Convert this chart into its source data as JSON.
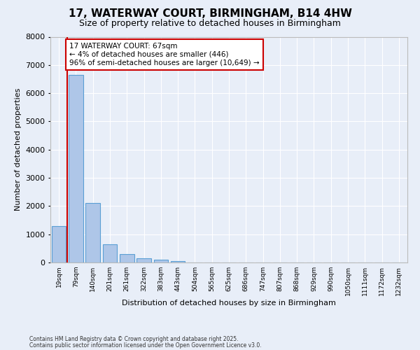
{
  "title_line1": "17, WATERWAY COURT, BIRMINGHAM, B14 4HW",
  "title_line2": "Size of property relative to detached houses in Birmingham",
  "xlabel": "Distribution of detached houses by size in Birmingham",
  "ylabel": "Number of detached properties",
  "categories": [
    "19sqm",
    "79sqm",
    "140sqm",
    "201sqm",
    "261sqm",
    "322sqm",
    "383sqm",
    "443sqm",
    "504sqm",
    "565sqm",
    "625sqm",
    "686sqm",
    "747sqm",
    "807sqm",
    "868sqm",
    "929sqm",
    "990sqm",
    "1050sqm",
    "1111sqm",
    "1172sqm",
    "1232sqm"
  ],
  "values": [
    1300,
    6650,
    2100,
    650,
    290,
    140,
    100,
    60,
    0,
    0,
    0,
    0,
    0,
    0,
    0,
    0,
    0,
    0,
    0,
    0,
    0
  ],
  "bar_color": "#aec6e8",
  "bar_edge_color": "#5a9fd4",
  "vline_color": "#cc0000",
  "annotation_title": "17 WATERWAY COURT: 67sqm",
  "annotation_line2": "← 4% of detached houses are smaller (446)",
  "annotation_line3": "96% of semi-detached houses are larger (10,649) →",
  "annotation_box_color": "#cc0000",
  "ylim": [
    0,
    8000
  ],
  "yticks": [
    0,
    1000,
    2000,
    3000,
    4000,
    5000,
    6000,
    7000,
    8000
  ],
  "footer_line1": "Contains HM Land Registry data © Crown copyright and database right 2025.",
  "footer_line2": "Contains public sector information licensed under the Open Government Licence v3.0.",
  "bg_color": "#e8eef8",
  "plot_bg_color": "#e8eef8",
  "grid_color": "#ffffff"
}
